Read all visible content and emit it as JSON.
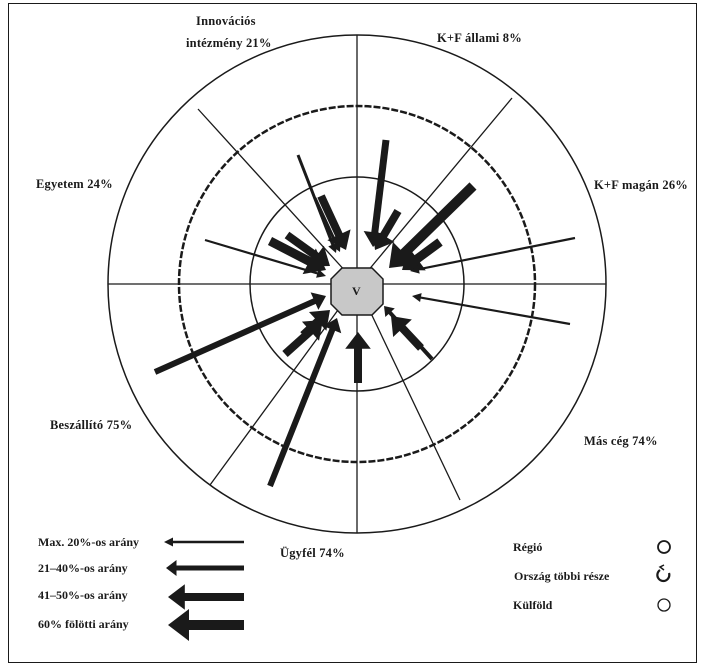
{
  "center": {
    "label": "V"
  },
  "sectors": [
    {
      "id": "innovacios",
      "line1": "Innovációs",
      "line2": "intézmény 21%"
    },
    {
      "id": "kf-allami",
      "label": "K+F állami 8%"
    },
    {
      "id": "kf-magan",
      "label": "K+F magán 26%"
    },
    {
      "id": "mas-ceg",
      "label": "Más cég 74%"
    },
    {
      "id": "ugyfel",
      "label": "Ügyfél 74%"
    },
    {
      "id": "beszallito",
      "label": "Beszállító 75%"
    },
    {
      "id": "egyetem",
      "label": "Egyetem 24%"
    }
  ],
  "legend": {
    "arrows": [
      {
        "label": "Max. 20%-os arány"
      },
      {
        "label": "21–40%-os arány"
      },
      {
        "label": "41–50%-os arány"
      },
      {
        "label": "60% fölötti arány"
      }
    ],
    "rings": [
      {
        "label": "Régió"
      },
      {
        "label": "Ország többi része"
      },
      {
        "label": "Külföld"
      }
    ]
  },
  "colors": {
    "ink": "#1a1a1a",
    "hub_fill": "#c8c8c8",
    "background": "#ffffff"
  }
}
